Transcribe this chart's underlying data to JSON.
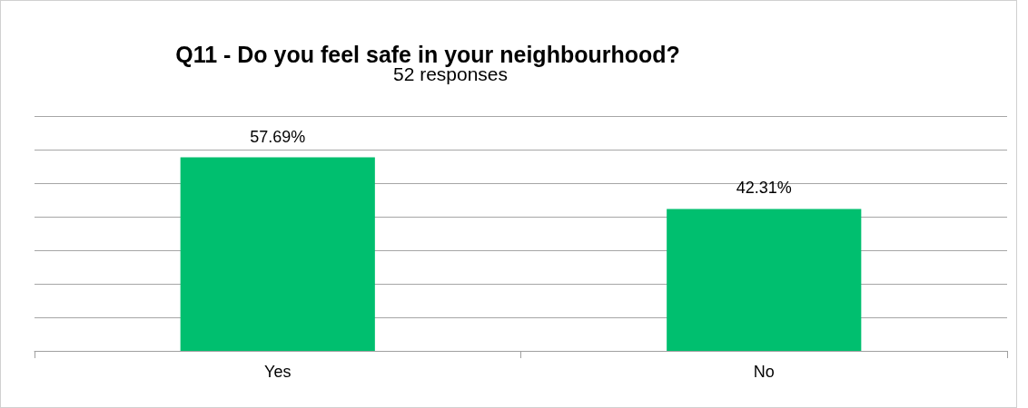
{
  "chart_data": {
    "type": "bar",
    "title": "Q11 - Do you feel safe in your neighbourhood?",
    "subtitle": "52 responses",
    "categories": [
      "Yes",
      "No"
    ],
    "values": [
      57.69,
      42.31
    ],
    "color": "#00bf6f",
    "value_labels": [
      "57.69%",
      "42.31%"
    ],
    "ylim": [
      0,
      70
    ],
    "yticks": [
      {
        "value": 0,
        "label": null
      },
      {
        "value": 10,
        "label": null
      },
      {
        "value": 20,
        "label": null
      },
      {
        "value": 30,
        "label": null
      },
      {
        "value": 40,
        "label": null
      },
      {
        "value": 50,
        "label": null
      },
      {
        "value": 60,
        "label": null
      },
      {
        "value": 70,
        "label": null
      }
    ],
    "grid": "y",
    "tick_labels": "x"
  }
}
